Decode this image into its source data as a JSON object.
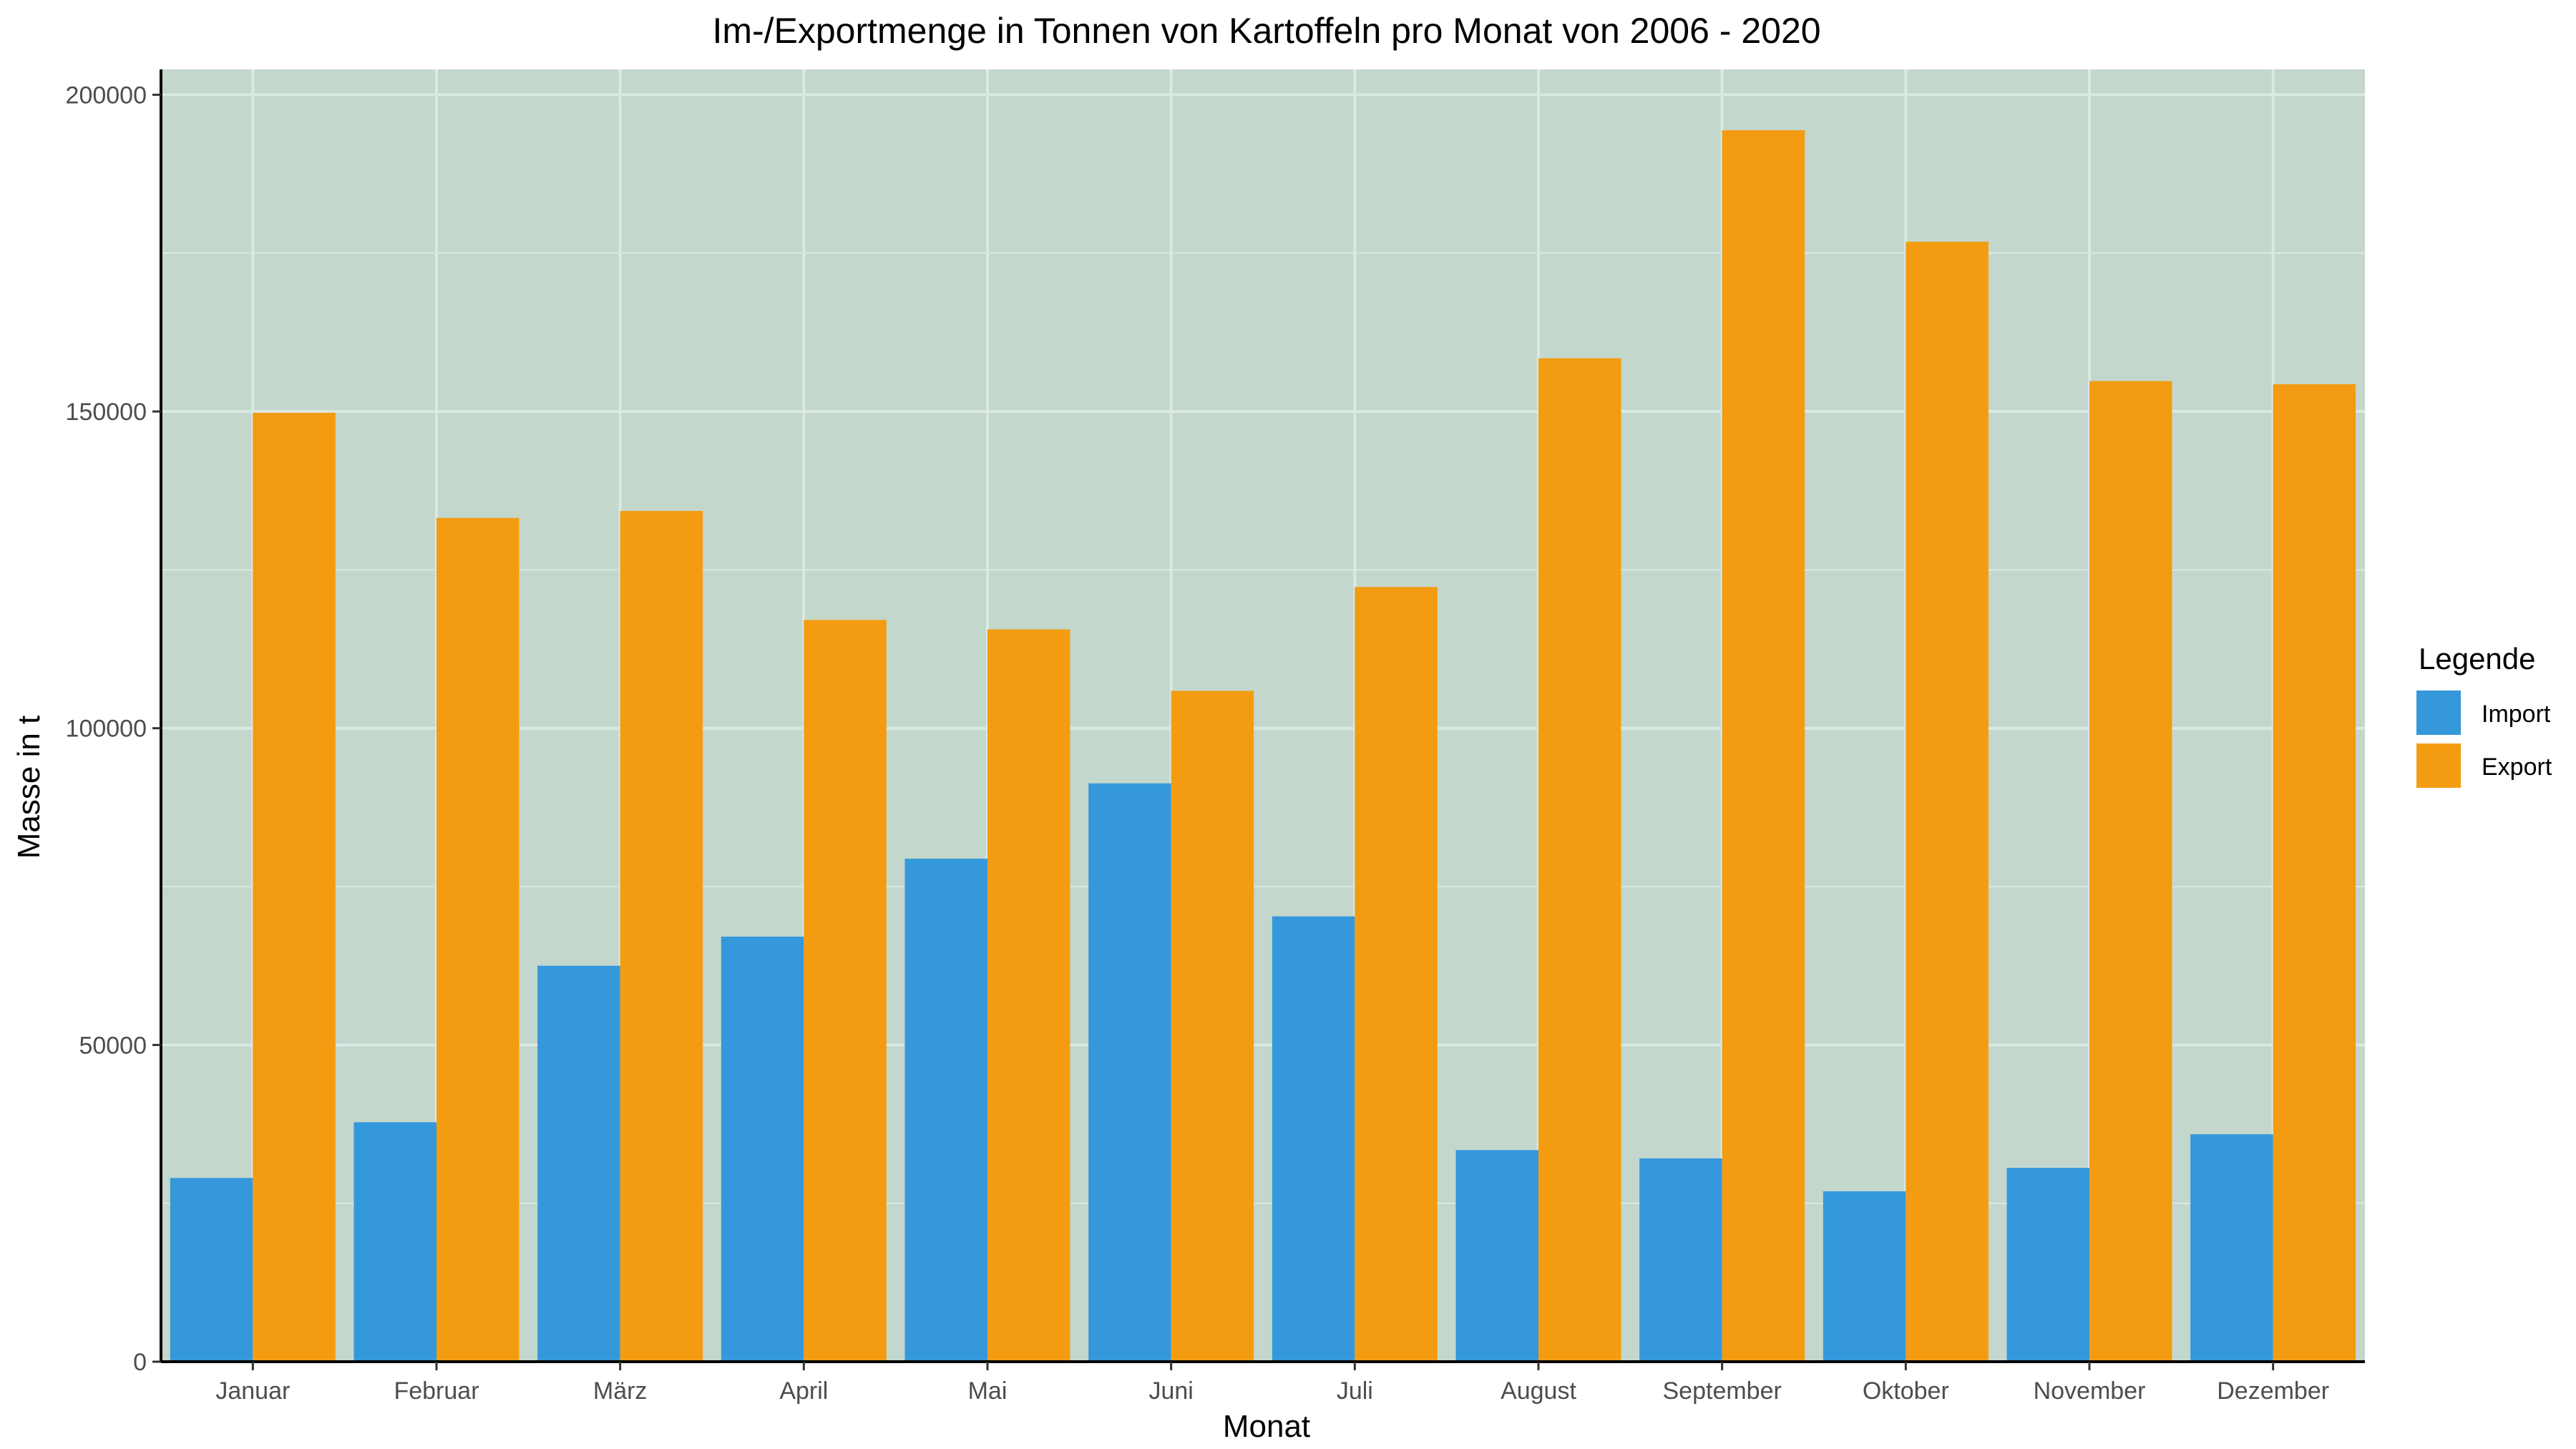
{
  "chart_data": {
    "type": "bar",
    "title": "Im-/Exportmenge in Tonnen von Kartoffeln pro Monat von 2006 - 2020",
    "xlabel": "Monat",
    "ylabel": "Masse in t",
    "categories": [
      "Januar",
      "Februar",
      "März",
      "April",
      "Mai",
      "Juni",
      "Juli",
      "August",
      "September",
      "Oktober",
      "November",
      "Dezember"
    ],
    "series": [
      {
        "name": "Import",
        "color": "#3498db",
        "values": [
          29000,
          37800,
          62500,
          67100,
          79400,
          91300,
          70300,
          33400,
          32100,
          26900,
          30600,
          35900
        ]
      },
      {
        "name": "Export",
        "color": "#f39c12",
        "values": [
          149800,
          133200,
          134300,
          117100,
          115600,
          105900,
          122300,
          158400,
          194400,
          176800,
          154800,
          154300
        ]
      }
    ],
    "ylim": [
      0,
      204000
    ],
    "yticks": [
      0,
      50000,
      100000,
      150000,
      200000
    ],
    "ytick_labels": [
      "0",
      "50000",
      "100000",
      "150000",
      "200000"
    ],
    "grid": true,
    "legend": {
      "title": "Legende",
      "position": "right"
    },
    "panel_background": "#c3d7cc",
    "grid_color": "#dbe9e3"
  }
}
